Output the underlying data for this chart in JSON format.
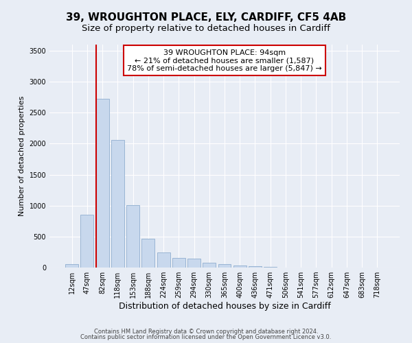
{
  "title": "39, WROUGHTON PLACE, ELY, CARDIFF, CF5 4AB",
  "subtitle": "Size of property relative to detached houses in Cardiff",
  "xlabel": "Distribution of detached houses by size in Cardiff",
  "ylabel": "Number of detached properties",
  "bar_labels": [
    "12sqm",
    "47sqm",
    "82sqm",
    "118sqm",
    "153sqm",
    "188sqm",
    "224sqm",
    "259sqm",
    "294sqm",
    "330sqm",
    "365sqm",
    "400sqm",
    "436sqm",
    "471sqm",
    "506sqm",
    "541sqm",
    "577sqm",
    "612sqm",
    "647sqm",
    "683sqm",
    "718sqm"
  ],
  "bar_values": [
    60,
    850,
    2720,
    2060,
    1010,
    460,
    240,
    155,
    145,
    75,
    55,
    30,
    20,
    10,
    0,
    0,
    0,
    0,
    0,
    0,
    0
  ],
  "bar_color": "#c8d8ed",
  "bar_edge_color": "#9ab5d4",
  "ylim": [
    0,
    3600
  ],
  "yticks": [
    0,
    500,
    1000,
    1500,
    2000,
    2500,
    3000,
    3500
  ],
  "vline_color": "#cc0000",
  "annotation_line1": "39 WROUGHTON PLACE: 94sqm",
  "annotation_line2": "← 21% of detached houses are smaller (1,587)",
  "annotation_line3": "78% of semi-detached houses are larger (5,847) →",
  "annotation_box_facecolor": "#ffffff",
  "annotation_box_edgecolor": "#cc0000",
  "footer1": "Contains HM Land Registry data © Crown copyright and database right 2024.",
  "footer2": "Contains public sector information licensed under the Open Government Licence v3.0.",
  "bg_color": "#e8edf5",
  "plot_bg_color": "#e8edf5",
  "grid_color": "#ffffff",
  "title_fontsize": 11,
  "subtitle_fontsize": 9.5,
  "ylabel_fontsize": 8,
  "xlabel_fontsize": 9,
  "tick_fontsize": 7,
  "annotation_fontsize": 8
}
